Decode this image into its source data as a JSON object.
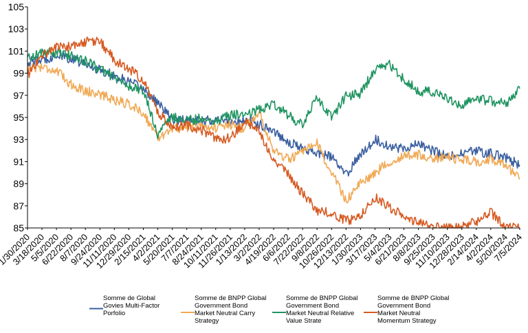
{
  "chart_data": {
    "type": "line",
    "title": "",
    "xlabel": "",
    "ylabel": "",
    "ylim": [
      85,
      105
    ],
    "yticks": [
      85,
      87,
      89,
      91,
      93,
      95,
      97,
      99,
      101,
      103,
      105
    ],
    "grid": false,
    "legend_position": "bottom",
    "x_tick_labels": [
      "1/30/2020",
      "3/18/2020",
      "5/5/2020",
      "6/22/2020",
      "8/7/2020",
      "9/24/2020",
      "11/11/2020",
      "12/29/2020",
      "2/15/2021",
      "4/2/2021",
      "5/20/2021",
      "7/7/2021",
      "8/24/2021",
      "10/11/2021",
      "11/26/2021",
      "1/13/2022",
      "3/2/2022",
      "4/19/2022",
      "6/6/2022",
      "7/22/2022",
      "9/8/2022",
      "10/26/2022",
      "12/13/2022",
      "1/30/2023",
      "3/17/2023",
      "5/4/2023",
      "6/21/2023",
      "8/8/2023",
      "9/25/2023",
      "11/10/2023",
      "12/28/2023",
      "2/14/2024",
      "4/2/2024",
      "5/20/2024",
      "7/5/2024"
    ],
    "series": [
      {
        "name": "Somme de Global Govies Multi-Factor Porfolio",
        "color": "#3a5fa0",
        "values": [
          100,
          100.2,
          100.6,
          100.3,
          99.8,
          99.3,
          98.8,
          98.2,
          97.6,
          96.3,
          94.8,
          94.7,
          94.6,
          94.8,
          94.6,
          94.7,
          94.4,
          93.8,
          92.8,
          92.2,
          91.8,
          91.4,
          89.8,
          91.7,
          93.0,
          92.4,
          92.2,
          92.6,
          92.0,
          91.4,
          91.7,
          92.0,
          91.7,
          91.4,
          90.7
        ]
      },
      {
        "name": "Somme de BNPP Global Government Bond Market Neutral Carry Strategy",
        "color": "#f0a955",
        "values": [
          99.5,
          99.6,
          99.2,
          98.0,
          97.4,
          97.1,
          96.6,
          96.2,
          95.4,
          93.2,
          94.0,
          94.1,
          94.4,
          94.0,
          94.3,
          94.0,
          95.5,
          92.0,
          91.2,
          91.8,
          92.6,
          90.0,
          87.5,
          89.0,
          90.0,
          91.0,
          91.5,
          91.6,
          91.3,
          91.4,
          91.2,
          91.0,
          91.2,
          90.8,
          89.4
        ]
      },
      {
        "name": "Somme de BNPP Global Government Bond Market Neutral Relative Value Strate",
        "color": "#1f9460",
        "values": [
          100.4,
          100.9,
          100.8,
          100.6,
          100.1,
          99.4,
          98.6,
          97.8,
          97.4,
          93.5,
          95.0,
          94.7,
          94.9,
          94.7,
          95.2,
          95.3,
          95.7,
          96.3,
          95.2,
          94.3,
          96.8,
          95.0,
          96.9,
          97.2,
          99.3,
          99.8,
          98.4,
          97.4,
          97.3,
          96.6,
          96.2,
          96.7,
          96.5,
          96.2,
          97.6
        ]
      },
      {
        "name": "Somme de BNPP Global Government Bond Market Neutral Momentum Strategy",
        "color": "#d65a22",
        "values": [
          98.8,
          100.6,
          101.4,
          101.4,
          101.8,
          101.9,
          100.2,
          99.4,
          98.4,
          95.4,
          94.2,
          94.3,
          93.9,
          93.0,
          93.1,
          94.6,
          93.7,
          91.3,
          89.8,
          88.1,
          86.6,
          86.3,
          85.6,
          86.2,
          87.8,
          86.9,
          86.0,
          85.4,
          85.1,
          85.0,
          85.1,
          85.6,
          86.4,
          85.0,
          85.0
        ]
      }
    ]
  }
}
